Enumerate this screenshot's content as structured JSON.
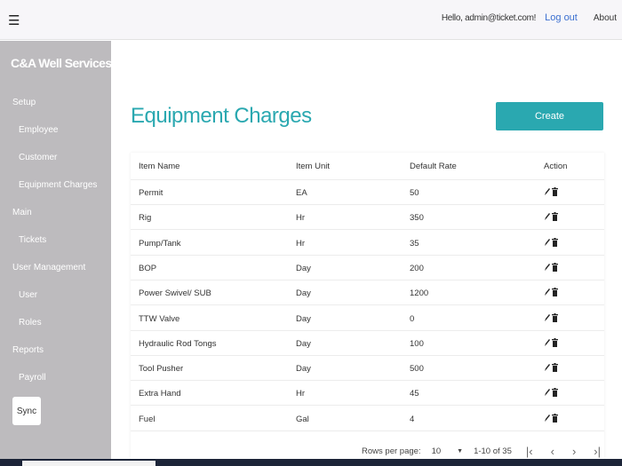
{
  "header": {
    "greeting": "Hello, admin@ticket.com!",
    "logout": "Log out",
    "about": "About"
  },
  "sidebar": {
    "brand": "C&A Well Services",
    "sections": [
      {
        "label": "Setup",
        "items": [
          "Employee",
          "Customer",
          "Equipment Charges"
        ]
      },
      {
        "label": "Main",
        "items": [
          "Tickets"
        ]
      },
      {
        "label": "User Management",
        "items": [
          "User",
          "Roles"
        ]
      },
      {
        "label": "Reports",
        "items": [
          "Payroll"
        ]
      }
    ],
    "sync": "Sync"
  },
  "main": {
    "title": "Equipment Charges",
    "create": "Create",
    "columns": [
      "Item Name",
      "Item Unit",
      "Default Rate",
      "Action"
    ],
    "rows": [
      [
        "Permit",
        "EA",
        "50"
      ],
      [
        "Rig",
        "Hr",
        "350"
      ],
      [
        "Pump/Tank",
        "Hr",
        "35"
      ],
      [
        "BOP",
        "Day",
        "200"
      ],
      [
        "Power Swivel/ SUB",
        "Day",
        "1200"
      ],
      [
        "TTW Valve",
        "Day",
        "0"
      ],
      [
        "Hydraulic Rod Tongs",
        "Day",
        "100"
      ],
      [
        "Tool Pusher",
        "Day",
        "500"
      ],
      [
        "Extra Hand",
        "Hr",
        "45"
      ],
      [
        "Fuel",
        "Gal",
        "4"
      ]
    ],
    "pagination": {
      "rows_per_page_label": "Rows per page:",
      "rows_per_page": "10",
      "range": "1-10 of 35"
    }
  },
  "colors": {
    "accent": "#2aa8b0",
    "sidebar": "#bdbbbe",
    "link": "#3b6fd0"
  }
}
